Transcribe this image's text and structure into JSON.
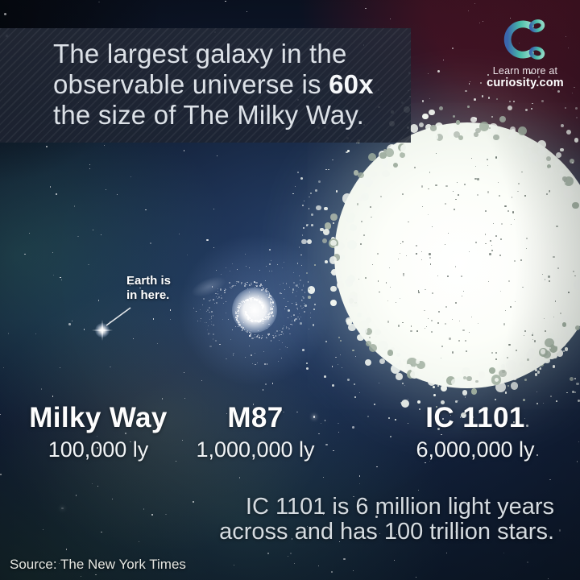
{
  "title": {
    "line1": "The largest galaxy in the",
    "line2_prefix": "observable universe is ",
    "line2_highlight": "60x",
    "line3": "the size of The Milky Way."
  },
  "branding": {
    "logo_icon": "curiosity-logo",
    "tagline": "Learn more at",
    "site": "curiosity.com"
  },
  "annotation": {
    "line1": "Earth is",
    "line2": "in here."
  },
  "galaxies": [
    {
      "name": "Milky Way",
      "size_ly": "100,000 ly"
    },
    {
      "name": "M87",
      "size_ly": "1,000,000 ly"
    },
    {
      "name": "IC 1101",
      "size_ly": "6,000,000 ly"
    }
  ],
  "caption": {
    "line1": "IC 1101 is 6 million light years",
    "line2": "across and has 100 trillion stars."
  },
  "source": "Source: The New York Times",
  "colors": {
    "space_navy": "#16243c",
    "space_dark": "#0a1120",
    "maroon_corner": "#521426",
    "teal_nebula": "#2e6a60",
    "olive_glow": "#8a8f5a",
    "blue_glow": "#4069aa",
    "logo_blue": "#3a66ad",
    "logo_teal": "#49bda9",
    "logo_mint": "#8fd8c5",
    "galaxy_white": "#f2f6ef",
    "text_light": "#dce1e7"
  }
}
